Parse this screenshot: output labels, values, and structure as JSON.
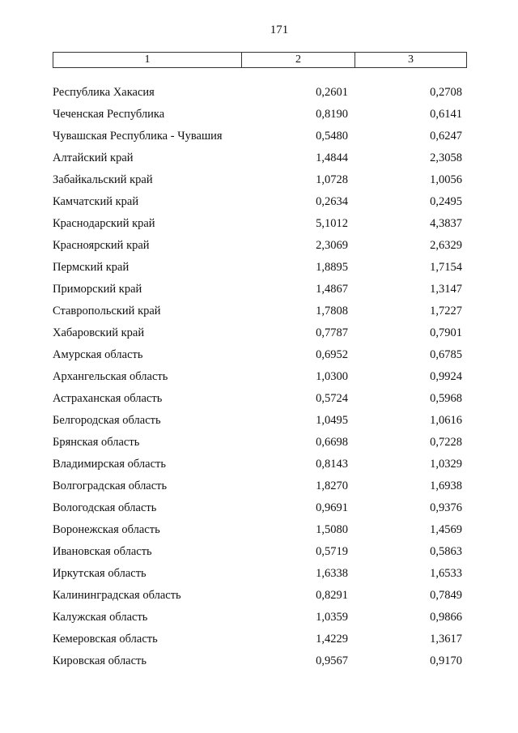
{
  "page_number": "171",
  "table": {
    "headers": [
      "1",
      "2",
      "3"
    ],
    "rows": [
      [
        "Республика Хакасия",
        "0,2601",
        "0,2708"
      ],
      [
        "Чеченская Республика",
        "0,8190",
        "0,6141"
      ],
      [
        "Чувашская Республика - Чувашия",
        "0,5480",
        "0,6247"
      ],
      [
        "Алтайский край",
        "1,4844",
        "2,3058"
      ],
      [
        "Забайкальский край",
        "1,0728",
        "1,0056"
      ],
      [
        "Камчатский край",
        "0,2634",
        "0,2495"
      ],
      [
        "Краснодарский край",
        "5,1012",
        "4,3837"
      ],
      [
        "Красноярский край",
        "2,3069",
        "2,6329"
      ],
      [
        "Пермский край",
        "1,8895",
        "1,7154"
      ],
      [
        "Приморский край",
        "1,4867",
        "1,3147"
      ],
      [
        "Ставропольский край",
        "1,7808",
        "1,7227"
      ],
      [
        "Хабаровский край",
        "0,7787",
        "0,7901"
      ],
      [
        "Амурская область",
        "0,6952",
        "0,6785"
      ],
      [
        "Архангельская область",
        "1,0300",
        "0,9924"
      ],
      [
        "Астраханская область",
        "0,5724",
        "0,5968"
      ],
      [
        "Белгородская область",
        "1,0495",
        "1,0616"
      ],
      [
        "Брянская область",
        "0,6698",
        "0,7228"
      ],
      [
        "Владимирская область",
        "0,8143",
        "1,0329"
      ],
      [
        "Волгоградская область",
        "1,8270",
        "1,6938"
      ],
      [
        "Вологодская область",
        "0,9691",
        "0,9376"
      ],
      [
        "Воронежская область",
        "1,5080",
        "1,4569"
      ],
      [
        "Ивановская область",
        "0,5719",
        "0,5863"
      ],
      [
        "Иркутская область",
        "1,6338",
        "1,6533"
      ],
      [
        "Калининградская область",
        "0,8291",
        "0,7849"
      ],
      [
        "Калужская область",
        "1,0359",
        "0,9866"
      ],
      [
        "Кемеровская область",
        "1,4229",
        "1,3617"
      ],
      [
        "Кировская область",
        "0,9567",
        "0,9170"
      ]
    ]
  }
}
